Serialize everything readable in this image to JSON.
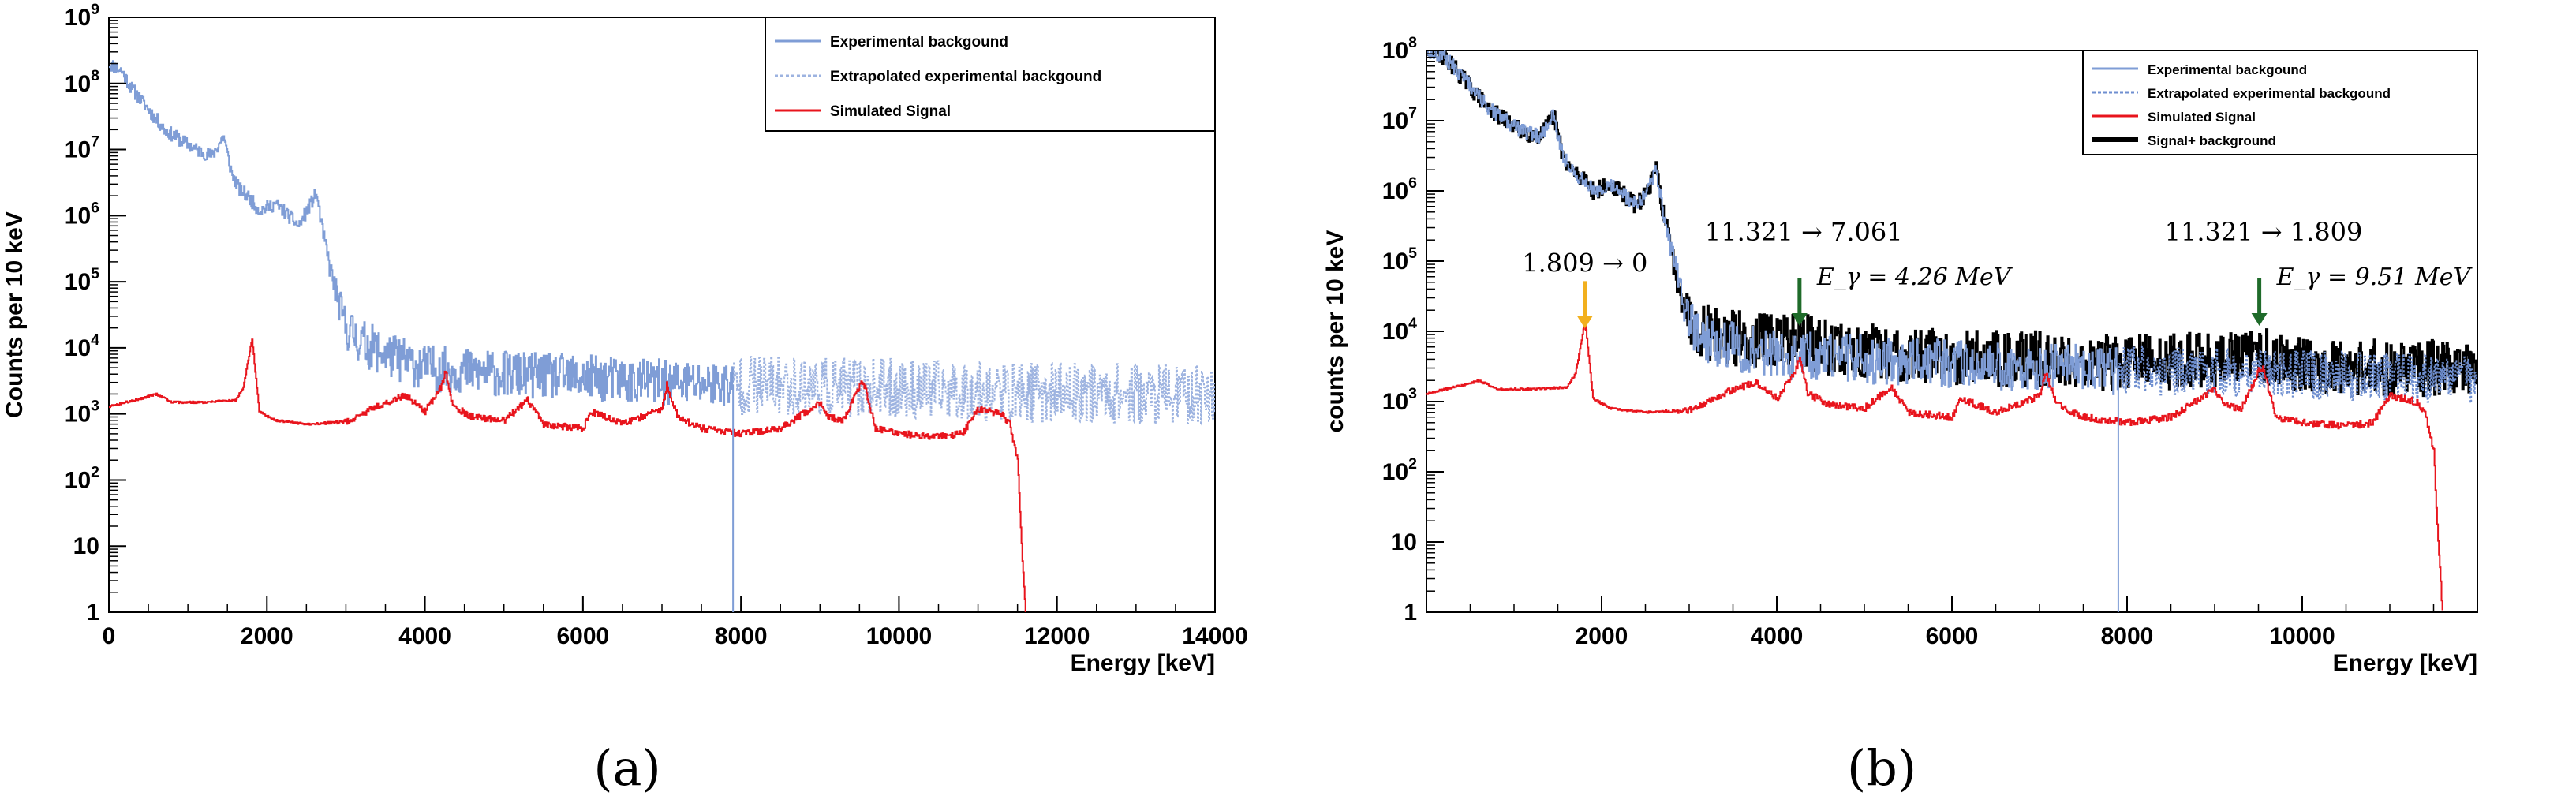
{
  "chart_data": [
    {
      "id": "a",
      "type": "line",
      "panel_label": "(a)",
      "title": "",
      "xlabel": "Energy [keV]",
      "ylabel": "Counts per 10 keV",
      "xscale": "linear",
      "yscale": "log",
      "xlim": [
        0,
        14000
      ],
      "ylim": [
        1,
        1000000000
      ],
      "xticks": [
        0,
        2000,
        4000,
        6000,
        8000,
        10000,
        12000,
        14000
      ],
      "xtick_labels": [
        "0",
        "2000",
        "4000",
        "6000",
        "8000",
        "10000",
        "12000",
        "14000"
      ],
      "yticks": [
        1,
        10,
        100,
        1000,
        10000,
        100000,
        1000000,
        10000000,
        100000000,
        1000000000
      ],
      "ytick_labels": [
        "1",
        "10",
        "10^2",
        "10^3",
        "10^4",
        "10^5",
        "10^6",
        "10^7",
        "10^8",
        "10^9"
      ],
      "legend_position": "top-right",
      "legend": [
        {
          "label": "Experimental backgound",
          "color": "#7f9dd6",
          "style": "solid"
        },
        {
          "label": "Extrapolated experimental backgound",
          "color": "#9db3e0",
          "style": "dotted"
        },
        {
          "label": "Simulated Signal",
          "color": "#e8141c",
          "style": "solid"
        }
      ],
      "series": [
        {
          "name": "Experimental backgound",
          "color": "#7f9dd6",
          "style": "solid",
          "noise": 0.35,
          "x": [
            0,
            150,
            300,
            500,
            700,
            900,
            1100,
            1300,
            1450,
            1500,
            1560,
            1650,
            1750,
            1900,
            2100,
            2200,
            2400,
            2550,
            2620,
            2700,
            2800,
            2900,
            3000,
            3200,
            3500,
            4000,
            5000,
            6000,
            7000,
            7900
          ],
          "y": [
            200000000,
            160000000,
            80000000,
            40000000,
            20000000,
            14000000,
            10000000,
            8000000,
            16000000,
            8000000,
            4000000,
            2500000,
            2000000,
            1200000,
            1500000,
            1200000,
            700000,
            1500000,
            2200000,
            600000,
            150000,
            50000,
            20000,
            12000,
            8000,
            5000,
            4000,
            3500,
            3000,
            2800
          ]
        },
        {
          "name": "Extrapolated experimental backgound",
          "color": "#9db3e0",
          "style": "dotted",
          "noise": 0.45,
          "x": [
            7900,
            9000,
            10000,
            11000,
            12000,
            13000,
            14000
          ],
          "y": [
            2800,
            2600,
            2400,
            2200,
            2100,
            2000,
            1900
          ]
        },
        {
          "name": "Simulated Signal",
          "color": "#e8141c",
          "style": "solid",
          "noise": 0.05,
          "x": [
            0,
            400,
            600,
            800,
            1200,
            1600,
            1700,
            1809,
            1900,
            2100,
            2500,
            3000,
            3500,
            3750,
            4000,
            4200,
            4260,
            4350,
            4600,
            5000,
            5300,
            5500,
            6000,
            6100,
            6500,
            7000,
            7060,
            7200,
            7500,
            8000,
            8500,
            9000,
            9100,
            9300,
            9500,
            9550,
            9700,
            10000,
            10500,
            10800,
            11000,
            11300,
            11400,
            11500,
            11550,
            11600
          ],
          "y": [
            1300,
            1700,
            2000,
            1500,
            1500,
            1600,
            2500,
            14000,
            1100,
            800,
            700,
            750,
            1500,
            1900,
            1100,
            2500,
            4300,
            1300,
            900,
            800,
            1600,
            700,
            600,
            1100,
            700,
            1200,
            2700,
            900,
            600,
            500,
            600,
            1500,
            900,
            800,
            2700,
            3000,
            600,
            500,
            450,
            500,
            1200,
            1000,
            700,
            200,
            10,
            1
          ]
        }
      ],
      "annotations": []
    },
    {
      "id": "b",
      "type": "line",
      "panel_label": "(b)",
      "title": "",
      "xlabel": "Energy [keV]",
      "ylabel": "counts per 10 keV",
      "xscale": "linear",
      "yscale": "log",
      "xlim": [
        0,
        12000
      ],
      "ylim": [
        1,
        100000000
      ],
      "xticks": [
        2000,
        4000,
        6000,
        8000,
        10000
      ],
      "xtick_labels": [
        "2000",
        "4000",
        "6000",
        "8000",
        "10000"
      ],
      "yticks": [
        1,
        10,
        100,
        1000,
        10000,
        100000,
        1000000,
        10000000,
        100000000
      ],
      "ytick_labels": [
        "1",
        "10",
        "10^2",
        "10^3",
        "10^4",
        "10^5",
        "10^6",
        "10^7",
        "10^8"
      ],
      "legend_position": "top-right",
      "legend": [
        {
          "label": "Experimental backgound",
          "color": "#7f9dd6",
          "style": "solid"
        },
        {
          "label": "Extrapolated experimental backgound",
          "color": "#6f8fd0",
          "style": "dotted"
        },
        {
          "label": "Simulated Signal",
          "color": "#e8141c",
          "style": "solid"
        },
        {
          "label": "Signal+ background",
          "color": "#000000",
          "style": "solid"
        }
      ],
      "series": [
        {
          "name": "Signal+ background",
          "color": "#000000",
          "style": "solid",
          "noise": 0.4,
          "x": [
            0,
            150,
            300,
            500,
            700,
            900,
            1100,
            1300,
            1450,
            1500,
            1560,
            1650,
            1750,
            1809,
            1900,
            2100,
            2200,
            2400,
            2550,
            2620,
            2700,
            2800,
            2900,
            3000,
            3200,
            3500,
            4000,
            4200,
            4500,
            5000,
            6000,
            7000,
            8000,
            9000,
            9500,
            10000,
            11000,
            12000
          ],
          "y": [
            100000000,
            90000000,
            60000000,
            30000000,
            15000000,
            10000000,
            7000000,
            6000000,
            12000000,
            6000000,
            3000000,
            2000000,
            1500000,
            1600000,
            1000000,
            1200000,
            1000000,
            600000,
            1200000,
            2000000,
            500000,
            120000,
            40000,
            15000,
            10000,
            8000,
            7000,
            9000,
            6000,
            5000,
            4500,
            4000,
            3500,
            4000,
            4500,
            3500,
            3000,
            3000
          ]
        },
        {
          "name": "Experimental backgound",
          "color": "#7f9dd6",
          "style": "solid",
          "noise": 0.35,
          "x": [
            0,
            150,
            300,
            500,
            700,
            900,
            1100,
            1300,
            1450,
            1500,
            1560,
            1650,
            1750,
            1900,
            2100,
            2200,
            2400,
            2550,
            2620,
            2700,
            2800,
            2900,
            3000,
            3200,
            3500,
            4000,
            5000,
            6000,
            7000,
            7900
          ],
          "y": [
            100000000,
            90000000,
            60000000,
            30000000,
            15000000,
            10000000,
            7000000,
            6000000,
            12000000,
            6000000,
            3000000,
            2000000,
            1500000,
            1000000,
            1200000,
            1000000,
            600000,
            1200000,
            2000000,
            500000,
            120000,
            40000,
            12000,
            8000,
            6000,
            4500,
            4000,
            3500,
            3000,
            2800
          ]
        },
        {
          "name": "Extrapolated experimental backgound",
          "color": "#6f8fd0",
          "style": "dotted",
          "noise": 0.35,
          "x": [
            7900,
            9000,
            10000,
            11000,
            12000
          ],
          "y": [
            2800,
            2600,
            2400,
            2200,
            2100
          ]
        },
        {
          "name": "Simulated Signal",
          "color": "#e8141c",
          "style": "solid",
          "noise": 0.05,
          "x": [
            0,
            400,
            600,
            800,
            1200,
            1600,
            1700,
            1809,
            1900,
            2100,
            2500,
            3000,
            3500,
            3750,
            4000,
            4200,
            4260,
            4350,
            4600,
            5000,
            5300,
            5500,
            6000,
            6100,
            6500,
            7000,
            7060,
            7200,
            7500,
            8000,
            8500,
            9000,
            9100,
            9300,
            9500,
            9550,
            9700,
            10000,
            10500,
            10800,
            11000,
            11300,
            11400,
            11500,
            11550,
            11600
          ],
          "y": [
            1300,
            1700,
            2000,
            1500,
            1500,
            1600,
            2500,
            14000,
            1100,
            800,
            700,
            750,
            1500,
            1900,
            1100,
            2500,
            4300,
            1300,
            900,
            800,
            1600,
            700,
            600,
            1100,
            700,
            1200,
            2700,
            900,
            600,
            500,
            600,
            1500,
            900,
            800,
            2700,
            3000,
            600,
            500,
            450,
            500,
            1200,
            1000,
            700,
            200,
            10,
            1
          ]
        }
      ],
      "annotations": [
        {
          "x": 1809,
          "y": 11000,
          "color": "#f2b01e",
          "lines": [
            "1.809 → 0"
          ]
        },
        {
          "x": 4260,
          "y": 12000,
          "color": "#1f6b2a",
          "lines": [
            "11.321 → 7.061",
            "E_γ = 4.26 MeV"
          ]
        },
        {
          "x": 9510,
          "y": 12000,
          "color": "#1f6b2a",
          "lines": [
            "11.321 → 1.809",
            "E_γ = 9.51 MeV"
          ]
        }
      ]
    }
  ]
}
